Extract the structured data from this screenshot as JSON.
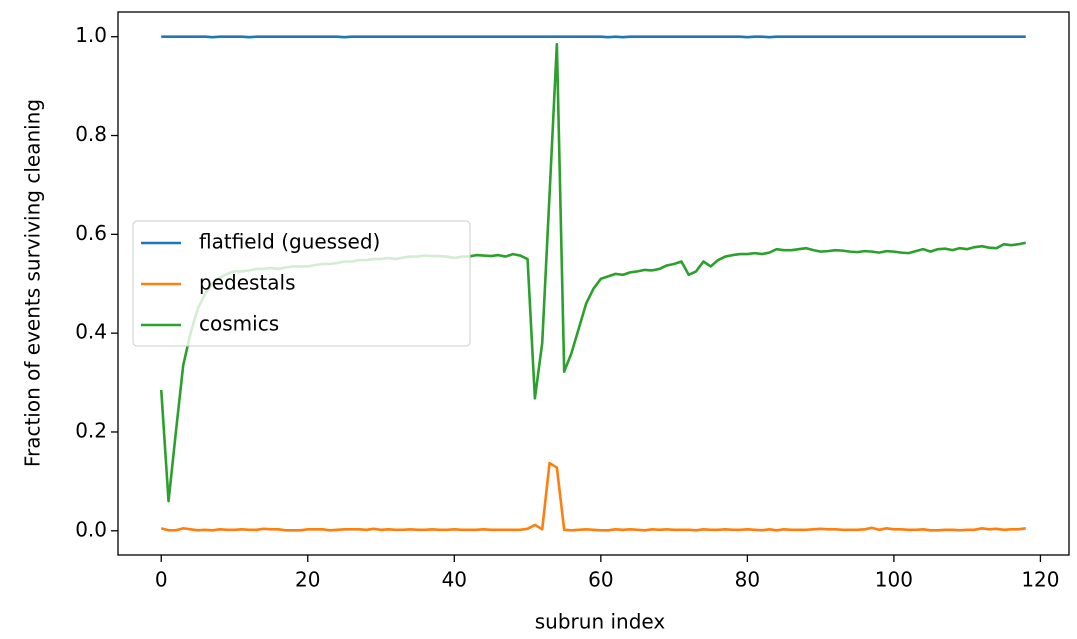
{
  "chart_data": {
    "type": "line",
    "xlabel": "subrun index",
    "ylabel": "Fraction of events surviving cleaning",
    "x": [
      0,
      1,
      2,
      3,
      4,
      5,
      6,
      7,
      8,
      9,
      10,
      11,
      12,
      13,
      14,
      15,
      16,
      17,
      18,
      19,
      20,
      21,
      22,
      23,
      24,
      25,
      26,
      27,
      28,
      29,
      30,
      31,
      32,
      33,
      34,
      35,
      36,
      37,
      38,
      39,
      40,
      41,
      42,
      43,
      44,
      45,
      46,
      47,
      48,
      49,
      50,
      51,
      52,
      53,
      54,
      55,
      56,
      57,
      58,
      59,
      60,
      61,
      62,
      63,
      64,
      65,
      66,
      67,
      68,
      69,
      70,
      71,
      72,
      73,
      74,
      75,
      76,
      77,
      78,
      79,
      80,
      81,
      82,
      83,
      84,
      85,
      86,
      87,
      88,
      89,
      90,
      91,
      92,
      93,
      94,
      95,
      96,
      97,
      98,
      99,
      100,
      101,
      102,
      103,
      104,
      105,
      106,
      107,
      108,
      109,
      110,
      111,
      112,
      113,
      114,
      115,
      116,
      117,
      118
    ],
    "series": [
      {
        "name": "flatfield (guessed)",
        "color": "#1f77b4",
        "values": [
          1,
          1,
          1,
          1,
          1,
          1,
          1,
          0.999,
          1,
          1,
          1,
          1,
          0.999,
          1,
          1,
          1,
          1,
          1,
          1,
          1,
          1,
          1,
          1,
          1,
          1,
          0.999,
          1,
          1,
          1,
          1,
          1,
          1,
          1,
          1,
          1,
          1,
          1,
          1,
          1,
          1,
          1,
          1,
          1,
          1,
          1,
          1,
          1,
          1,
          1,
          1,
          1,
          1,
          1,
          1,
          1,
          1,
          1,
          1,
          1,
          1,
          1,
          0.999,
          1,
          0.999,
          1,
          1,
          1,
          1,
          1,
          1,
          1,
          1,
          1,
          1,
          1,
          1,
          1,
          1,
          1,
          1,
          0.999,
          1,
          1,
          0.999,
          1,
          1,
          1,
          1,
          1,
          1,
          1,
          1,
          1,
          1,
          1,
          1,
          1,
          1,
          1,
          1,
          1,
          1,
          1,
          1,
          1,
          1,
          1,
          1,
          1,
          1,
          1,
          1,
          1,
          1,
          1,
          1,
          1,
          1,
          1
        ]
      },
      {
        "name": "pedestals",
        "color": "#ff7f0e",
        "values": [
          0.005,
          0.001,
          0.001,
          0.005,
          0.003,
          0.001,
          0.002,
          0.001,
          0.003,
          0.002,
          0.002,
          0.003,
          0.002,
          0.002,
          0.004,
          0.003,
          0.003,
          0.001,
          0.001,
          0.001,
          0.003,
          0.003,
          0.003,
          0.001,
          0.002,
          0.003,
          0.003,
          0.003,
          0.002,
          0.004,
          0.002,
          0.003,
          0.002,
          0.002,
          0.003,
          0.002,
          0.002,
          0.003,
          0.002,
          0.002,
          0.003,
          0.002,
          0.002,
          0.002,
          0.003,
          0.002,
          0.002,
          0.002,
          0.002,
          0.002,
          0.004,
          0.012,
          0.003,
          0.137,
          0.128,
          0.002,
          0.001,
          0.002,
          0.003,
          0.002,
          0.001,
          0.001,
          0.003,
          0.002,
          0.003,
          0.002,
          0.001,
          0.003,
          0.002,
          0.003,
          0.002,
          0.002,
          0.002,
          0.001,
          0.003,
          0.002,
          0.002,
          0.003,
          0.002,
          0.002,
          0.003,
          0.002,
          0.001,
          0.003,
          0.001,
          0.003,
          0.002,
          0.002,
          0.002,
          0.003,
          0.004,
          0.003,
          0.003,
          0.002,
          0.002,
          0.002,
          0.003,
          0.006,
          0.002,
          0.005,
          0.003,
          0.003,
          0.002,
          0.002,
          0.003,
          0.001,
          0.001,
          0.002,
          0.002,
          0.001,
          0.002,
          0.002,
          0.005,
          0.003,
          0.004,
          0.002,
          0.003,
          0.003,
          0.005
        ]
      },
      {
        "name": "cosmics",
        "color": "#2ca02c",
        "values": [
          0.285,
          0.06,
          0.2,
          0.335,
          0.4,
          0.45,
          0.48,
          0.5,
          0.512,
          0.52,
          0.525,
          0.525,
          0.527,
          0.53,
          0.53,
          0.532,
          0.53,
          0.533,
          0.535,
          0.535,
          0.535,
          0.538,
          0.54,
          0.54,
          0.542,
          0.545,
          0.545,
          0.548,
          0.548,
          0.55,
          0.55,
          0.552,
          0.55,
          0.553,
          0.555,
          0.555,
          0.557,
          0.556,
          0.556,
          0.555,
          0.552,
          0.555,
          0.555,
          0.558,
          0.557,
          0.556,
          0.558,
          0.555,
          0.56,
          0.557,
          0.55,
          0.268,
          0.38,
          0.68,
          0.985,
          0.322,
          0.36,
          0.41,
          0.46,
          0.49,
          0.51,
          0.515,
          0.52,
          0.518,
          0.523,
          0.525,
          0.528,
          0.527,
          0.53,
          0.537,
          0.54,
          0.545,
          0.518,
          0.525,
          0.545,
          0.535,
          0.548,
          0.555,
          0.558,
          0.56,
          0.56,
          0.562,
          0.56,
          0.563,
          0.57,
          0.568,
          0.568,
          0.57,
          0.572,
          0.568,
          0.565,
          0.566,
          0.568,
          0.567,
          0.565,
          0.564,
          0.566,
          0.565,
          0.563,
          0.566,
          0.565,
          0.563,
          0.562,
          0.566,
          0.57,
          0.565,
          0.57,
          0.571,
          0.568,
          0.572,
          0.57,
          0.574,
          0.576,
          0.573,
          0.572,
          0.58,
          0.578,
          0.58,
          0.583
        ]
      }
    ],
    "xlim": [
      -5.9,
      123.9
    ],
    "ylim": [
      -0.049,
      1.05
    ],
    "xticks": [
      0,
      20,
      40,
      60,
      80,
      100,
      120
    ],
    "yticks": [
      {
        "value": 0,
        "label": "0.0"
      },
      {
        "value": 0.2,
        "label": "0.2"
      },
      {
        "value": 0.4,
        "label": "0.4"
      },
      {
        "value": 0.6,
        "label": "0.6"
      },
      {
        "value": 0.8,
        "label": "0.8"
      },
      {
        "value": 1,
        "label": "1.0"
      }
    ],
    "grid": false,
    "legend": "center left"
  }
}
